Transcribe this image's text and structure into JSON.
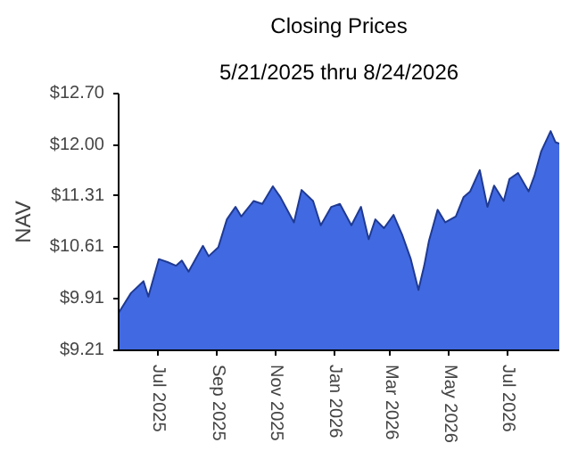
{
  "chart_data": {
    "type": "area",
    "title": "Closing Prices",
    "subtitle": "5/21/2025 thru 8/24/2026",
    "ylabel": "NAV",
    "x": [
      "2025-05-21",
      "2025-05-22",
      "2025-06-03",
      "2025-06-16",
      "2025-06-21",
      "2025-07-02",
      "2025-07-11",
      "2025-07-20",
      "2025-07-26",
      "2025-08-02",
      "2025-08-17",
      "2025-08-23",
      "2025-09-02",
      "2025-09-11",
      "2025-09-20",
      "2025-09-26",
      "2025-10-09",
      "2025-10-18",
      "2025-10-29",
      "2025-11-06",
      "2025-11-20",
      "2025-11-28",
      "2025-12-10",
      "2025-12-18",
      "2025-12-29",
      "2026-01-07",
      "2026-01-19",
      "2026-01-29",
      "2026-02-06",
      "2026-02-13",
      "2026-02-22",
      "2026-03-04",
      "2026-03-13",
      "2026-03-22",
      "2026-03-30",
      "2026-04-05",
      "2026-04-10",
      "2026-04-19",
      "2026-04-27",
      "2026-05-08",
      "2026-05-16",
      "2026-05-23",
      "2026-06-02",
      "2026-06-10",
      "2026-06-17",
      "2026-06-27",
      "2026-07-03",
      "2026-07-12",
      "2026-07-23",
      "2026-07-29",
      "2026-08-05",
      "2026-08-15",
      "2026-08-20",
      "2026-08-24"
    ],
    "series": [
      {
        "color": "#4169e1",
        "values": [
          9.72,
          9.74,
          9.99,
          10.15,
          9.94,
          10.45,
          10.41,
          10.36,
          10.43,
          10.28,
          10.63,
          10.49,
          10.61,
          10.99,
          11.16,
          11.03,
          11.24,
          11.2,
          11.44,
          11.29,
          10.95,
          11.39,
          11.24,
          10.91,
          11.16,
          11.2,
          10.91,
          11.16,
          10.72,
          10.99,
          10.87,
          11.05,
          10.78,
          10.45,
          10.03,
          10.36,
          10.7,
          11.12,
          10.95,
          11.03,
          11.29,
          11.37,
          11.66,
          11.16,
          11.45,
          11.24,
          11.54,
          11.62,
          11.37,
          11.58,
          11.91,
          12.19,
          12.04,
          12.02
        ]
      }
    ],
    "xlim": [
      "2025-05-21",
      "2026-08-24"
    ],
    "xticks": [
      {
        "value": "2025-07-01",
        "label": "Jul 2025"
      },
      {
        "value": "2025-09-01",
        "label": "Sep 2025"
      },
      {
        "value": "2025-11-01",
        "label": "Nov 2025"
      },
      {
        "value": "2026-01-01",
        "label": "Jan 2026"
      },
      {
        "value": "2026-03-01",
        "label": "Mar 2026"
      },
      {
        "value": "2026-05-01",
        "label": "May 2026"
      },
      {
        "value": "2026-07-01",
        "label": "Jul 2026"
      }
    ],
    "ylim": [
      9.21,
      12.7
    ],
    "yticks": [
      {
        "value": 9.21,
        "label": "$9.21"
      },
      {
        "value": 9.91,
        "label": "$9.91"
      },
      {
        "value": 10.61,
        "label": "$10.61"
      },
      {
        "value": 11.31,
        "label": "$11.31"
      },
      {
        "value": 12.0,
        "label": "$12.00"
      },
      {
        "value": 12.7,
        "label": "$12.70"
      }
    ],
    "grid": false
  }
}
